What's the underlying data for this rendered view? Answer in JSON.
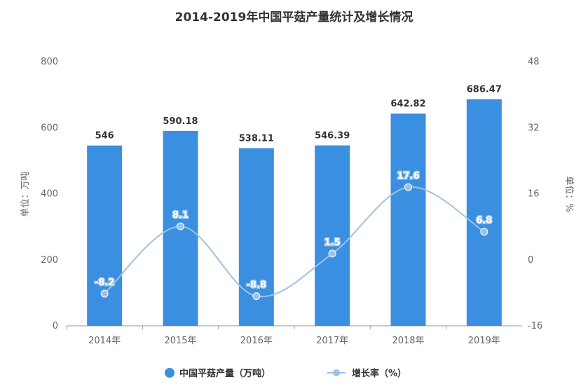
{
  "chart_data": {
    "type": "bar",
    "title": "2014-2019年中国平菇产量统计及增长情况",
    "categories": [
      "2014年",
      "2015年",
      "2016年",
      "2017年",
      "2018年",
      "2019年"
    ],
    "series": [
      {
        "name": "中国平菇产量（万吨）",
        "type": "bar",
        "axis": "left",
        "color": "#3b8fe0",
        "values": [
          546,
          590.18,
          538.11,
          546.39,
          642.82,
          686.47
        ],
        "labels": [
          "546",
          "590.18",
          "538.11",
          "546.39",
          "642.82",
          "686.47"
        ]
      },
      {
        "name": "增长率（%）",
        "type": "line",
        "axis": "right",
        "color": "#9cc3e6",
        "values": [
          -8.2,
          8.1,
          -8.8,
          1.5,
          17.6,
          6.8
        ],
        "labels": [
          "-8.2",
          "8.1",
          "-8.8",
          "1.5",
          "17.6",
          "6.8"
        ]
      }
    ],
    "ylabel": "单位：万吨",
    "y2label": "单位：%",
    "ylim": [
      0,
      800
    ],
    "y2lim": [
      -16,
      48
    ],
    "yticks": [
      "0",
      "200",
      "400",
      "600",
      "800"
    ],
    "y2ticks": [
      "-16",
      "0",
      "16",
      "32",
      "48"
    ],
    "grid": false,
    "legend_position": "bottom"
  }
}
